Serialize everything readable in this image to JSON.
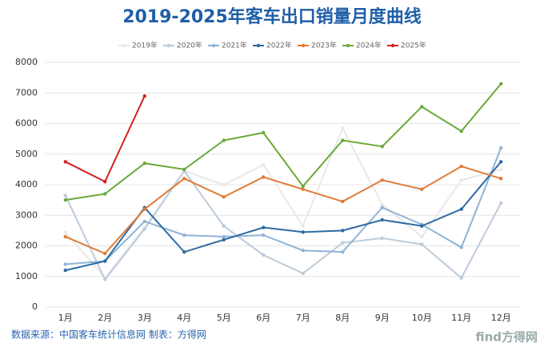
{
  "chart_data": {
    "type": "line",
    "title": "2019-2025年客车出口销量月度曲线",
    "categories": [
      "1月",
      "2月",
      "3月",
      "4月",
      "5月",
      "6月",
      "7月",
      "8月",
      "9月",
      "10月",
      "11月",
      "12月"
    ],
    "series": [
      {
        "name": "2019年",
        "color": "#e8e8e8",
        "values": [
          2450,
          950,
          2600,
          4450,
          4000,
          4650,
          2650,
          5850,
          3350,
          2300,
          4150,
          4500
        ]
      },
      {
        "name": "2020年",
        "color": "#bccbda",
        "values": [
          3650,
          900,
          2550,
          4450,
          2650,
          1700,
          1100,
          2100,
          2250,
          2050,
          950,
          3400
        ]
      },
      {
        "name": "2021年",
        "color": "#8fb4d6",
        "values": [
          1400,
          1500,
          2800,
          2350,
          2300,
          2350,
          1850,
          1800,
          3250,
          2700,
          1950,
          5200
        ]
      },
      {
        "name": "2022年",
        "color": "#2e6aa4",
        "values": [
          1200,
          1500,
          3250,
          1800,
          2200,
          2600,
          2450,
          2500,
          2850,
          2650,
          3200,
          4750
        ]
      },
      {
        "name": "2023年",
        "color": "#e07b39",
        "values": [
          2300,
          1750,
          3200,
          4200,
          3600,
          4250,
          3850,
          3450,
          4150,
          3850,
          4600,
          4200
        ]
      },
      {
        "name": "2024年",
        "color": "#6aaa3a",
        "values": [
          3500,
          3700,
          4700,
          4500,
          5450,
          5700,
          3950,
          5450,
          5250,
          6550,
          5750,
          7300
        ]
      },
      {
        "name": "2025年",
        "color": "#d42020",
        "values": [
          4750,
          4100,
          6900,
          null,
          null,
          null,
          null,
          null,
          null,
          null,
          null,
          null
        ]
      }
    ],
    "ylim": [
      0,
      8000
    ],
    "yticks": [
      0,
      1000,
      2000,
      3000,
      4000,
      5000,
      6000,
      7000,
      8000
    ],
    "grid": true,
    "legend": "top",
    "source": "数据来源：中国客车统计信息网 制表：方得网",
    "watermark": "find方得网"
  }
}
